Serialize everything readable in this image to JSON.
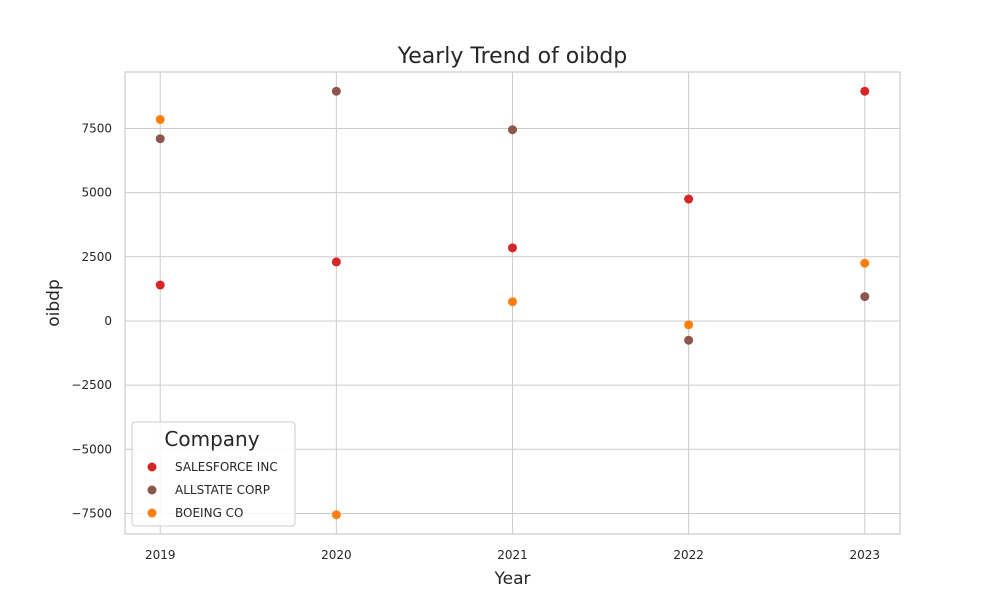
{
  "chart_data": {
    "type": "scatter",
    "title": "Yearly Trend of oibdp",
    "xlabel": "Year",
    "ylabel": "oibdp",
    "x": [
      2019,
      2020,
      2021,
      2022,
      2023
    ],
    "x_tick_labels": [
      "2019",
      "2020",
      "2021",
      "2022",
      "2023"
    ],
    "xlim": [
      2018.8,
      2023.2
    ],
    "ylim": [
      -8300,
      9700
    ],
    "y_ticks": [
      -7500,
      -5000,
      -2500,
      0,
      2500,
      5000,
      7500
    ],
    "y_tick_labels": [
      "−7500",
      "−5000",
      "−2500",
      "0",
      "2500",
      "5000",
      "7500"
    ],
    "grid": true,
    "legend": {
      "title": "Company",
      "placement": "lower-left"
    },
    "series": [
      {
        "name": "SALESFORCE INC",
        "color": "#d62728",
        "values": [
          1400,
          2300,
          2850,
          4750,
          8950
        ]
      },
      {
        "name": "ALLSTATE CORP",
        "color": "#8c564b",
        "values": [
          7100,
          8950,
          7450,
          -750,
          950
        ]
      },
      {
        "name": "BOEING CO",
        "color": "#ff7f0e",
        "values": [
          7850,
          -7550,
          750,
          -150,
          2250
        ]
      }
    ]
  }
}
